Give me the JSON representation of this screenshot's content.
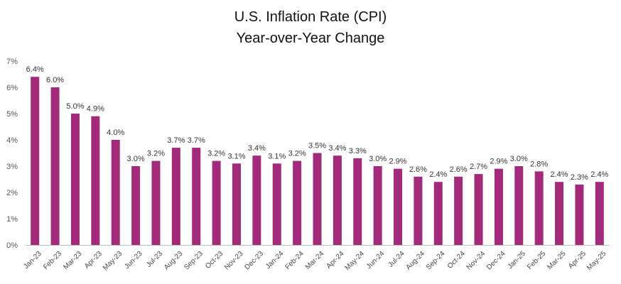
{
  "chart_data": {
    "type": "bar",
    "title": "U.S. Inflation Rate (CPI)",
    "subtitle": "Year-over-Year Change",
    "xlabel": "",
    "ylabel": "",
    "ylim": [
      0,
      7
    ],
    "y_ticks": [
      "0%",
      "1%",
      "2%",
      "3%",
      "4%",
      "5%",
      "6%",
      "7%"
    ],
    "grid": false,
    "legend": "none",
    "bar_color": "#A3297A",
    "categories": [
      "Jan-23",
      "Feb-23",
      "Mar-23",
      "Apr-23",
      "May-23",
      "Jun-23",
      "Jul-23",
      "Aug-23",
      "Sep-23",
      "Oct-23",
      "Nov-23",
      "Dec-23",
      "Jan-24",
      "Feb-24",
      "Mar-24",
      "Apr-24",
      "May-24",
      "Jun-24",
      "Jul-24",
      "Aug-24",
      "Sep-24",
      "Oct-24",
      "Nov-24",
      "Dec-24",
      "Jan-25",
      "Feb-25",
      "Mar-25",
      "Apr-25",
      "May-25"
    ],
    "values": [
      6.4,
      6.0,
      5.0,
      4.9,
      4.0,
      3.0,
      3.2,
      3.7,
      3.7,
      3.2,
      3.1,
      3.4,
      3.1,
      3.2,
      3.5,
      3.4,
      3.3,
      3.0,
      2.9,
      2.6,
      2.4,
      2.6,
      2.7,
      2.9,
      3.0,
      2.8,
      2.4,
      2.3,
      2.4
    ],
    "data_labels": [
      "6.4%",
      "6.0%",
      "5.0%",
      "4.9%",
      "4.0%",
      "3.0%",
      "3.2%",
      "3.7%",
      "3.7%",
      "3.2%",
      "3.1%",
      "3.4%",
      "3.1%",
      "3.2%",
      "3.5%",
      "3.4%",
      "3.3%",
      "3.0%",
      "2.9%",
      "2.6%",
      "2.4%",
      "2.6%",
      "2.7%",
      "2.9%",
      "3.0%",
      "2.8%",
      "2.4%",
      "2.3%",
      "2.4%"
    ]
  }
}
